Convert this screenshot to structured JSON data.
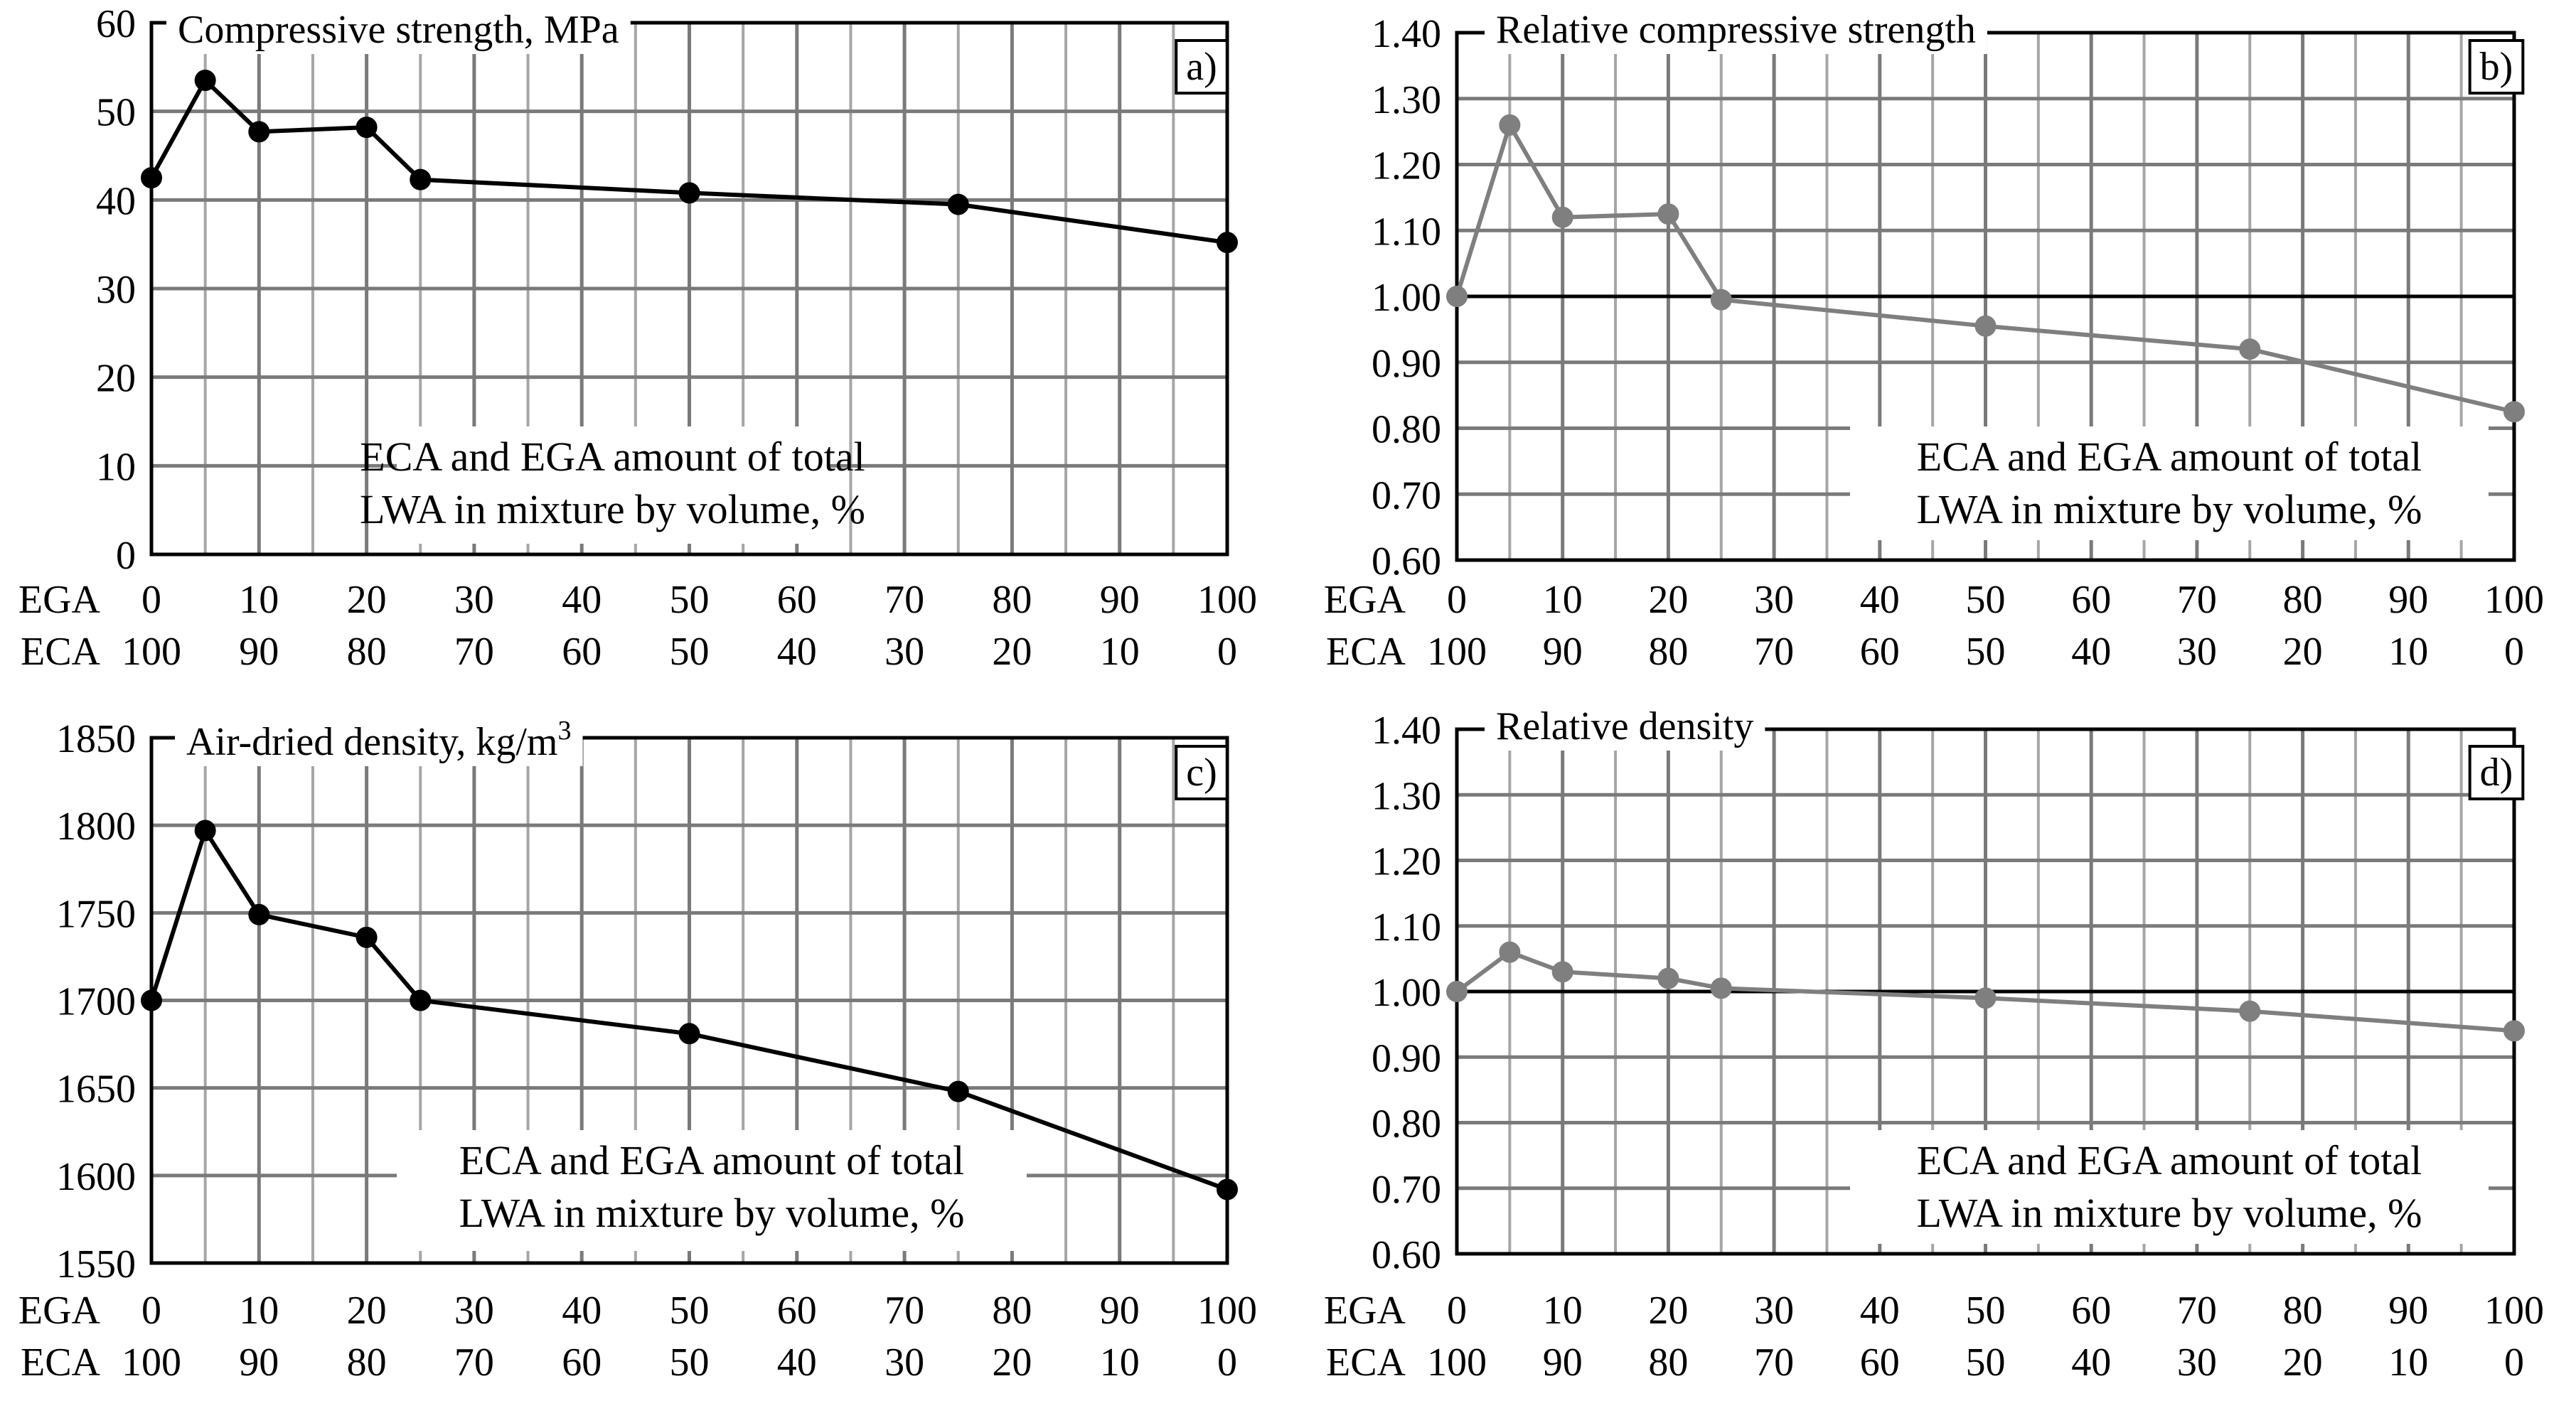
{
  "figure_title": "",
  "chart_data": [
    {
      "id": "a",
      "type": "line",
      "panel_label": "a)",
      "title": "Compressive strength, MPa",
      "title_sup": "",
      "ylim": [
        0,
        60
      ],
      "y_ticks": [
        "0",
        "10",
        "20",
        "30",
        "40",
        "50",
        "60"
      ],
      "x": [
        0,
        5,
        10,
        20,
        25,
        50,
        75,
        100
      ],
      "values": [
        42.5,
        53.5,
        47.7,
        48.2,
        42.3,
        40.8,
        39.5,
        35.2
      ],
      "reference_line": null,
      "line_color": "#000000",
      "x_rows": [
        {
          "name": "EGA",
          "ticks": [
            "0",
            "10",
            "20",
            "30",
            "40",
            "50",
            "60",
            "70",
            "80",
            "90",
            "100"
          ]
        },
        {
          "name": "ECA",
          "ticks": [
            "100",
            "90",
            "80",
            "70",
            "60",
            "50",
            "40",
            "30",
            "20",
            "10",
            "0"
          ]
        }
      ],
      "xlabel_lines": [
        "ECA and EGA amount of total",
        "LWA in mixture by volume, %"
      ]
    },
    {
      "id": "b",
      "type": "line",
      "panel_label": "b)",
      "title": "Relative compressive strength",
      "title_sup": "",
      "ylim": [
        0.6,
        1.4
      ],
      "y_ticks": [
        "0.60",
        "0.70",
        "0.80",
        "0.90",
        "1.00",
        "1.10",
        "1.20",
        "1.30",
        "1.40"
      ],
      "x": [
        0,
        5,
        10,
        20,
        25,
        50,
        75,
        100
      ],
      "values": [
        1.0,
        1.26,
        1.12,
        1.125,
        0.995,
        0.955,
        0.92,
        0.825
      ],
      "reference_line": 1.0,
      "line_color": "#7f7f7f",
      "x_rows": [
        {
          "name": "EGA",
          "ticks": [
            "0",
            "10",
            "20",
            "30",
            "40",
            "50",
            "60",
            "70",
            "80",
            "90",
            "100"
          ]
        },
        {
          "name": "ECA",
          "ticks": [
            "100",
            "90",
            "80",
            "70",
            "60",
            "50",
            "40",
            "30",
            "20",
            "10",
            "0"
          ]
        }
      ],
      "xlabel_lines": [
        "ECA and EGA amount of total",
        "LWA in mixture by volume, %"
      ]
    },
    {
      "id": "c",
      "type": "line",
      "panel_label": "c)",
      "title": "Air-dried density, kg/m",
      "title_sup": "3",
      "ylim": [
        1550,
        1850
      ],
      "y_ticks": [
        "1550",
        "1600",
        "1650",
        "1700",
        "1750",
        "1800",
        "1850"
      ],
      "x": [
        0,
        5,
        10,
        20,
        25,
        50,
        75,
        100
      ],
      "values": [
        1700,
        1797,
        1749,
        1736,
        1700,
        1681,
        1648,
        1592
      ],
      "reference_line": null,
      "line_color": "#000000",
      "x_rows": [
        {
          "name": "EGA",
          "ticks": [
            "0",
            "10",
            "20",
            "30",
            "40",
            "50",
            "60",
            "70",
            "80",
            "90",
            "100"
          ]
        },
        {
          "name": "ECA",
          "ticks": [
            "100",
            "90",
            "80",
            "70",
            "60",
            "50",
            "40",
            "30",
            "20",
            "10",
            "0"
          ]
        }
      ],
      "xlabel_lines": [
        "ECA and EGA amount of total",
        "LWA in mixture by volume, %"
      ]
    },
    {
      "id": "d",
      "type": "line",
      "panel_label": "d)",
      "title": "Relative density",
      "title_sup": "",
      "ylim": [
        0.6,
        1.4
      ],
      "y_ticks": [
        "0.60",
        "0.70",
        "0.80",
        "0.90",
        "1.00",
        "1.10",
        "1.20",
        "1.30",
        "1.40"
      ],
      "x": [
        0,
        5,
        10,
        20,
        25,
        50,
        75,
        100
      ],
      "values": [
        1.0,
        1.06,
        1.03,
        1.02,
        1.005,
        0.99,
        0.97,
        0.94
      ],
      "reference_line": 1.0,
      "line_color": "#7f7f7f",
      "x_rows": [
        {
          "name": "EGA",
          "ticks": [
            "0",
            "10",
            "20",
            "30",
            "40",
            "50",
            "60",
            "70",
            "80",
            "90",
            "100"
          ]
        },
        {
          "name": "ECA",
          "ticks": [
            "100",
            "90",
            "80",
            "70",
            "60",
            "50",
            "40",
            "30",
            "20",
            "10",
            "0"
          ]
        }
      ],
      "xlabel_lines": [
        "ECA and EGA amount of total",
        "LWA in mixture by volume, %"
      ]
    }
  ]
}
